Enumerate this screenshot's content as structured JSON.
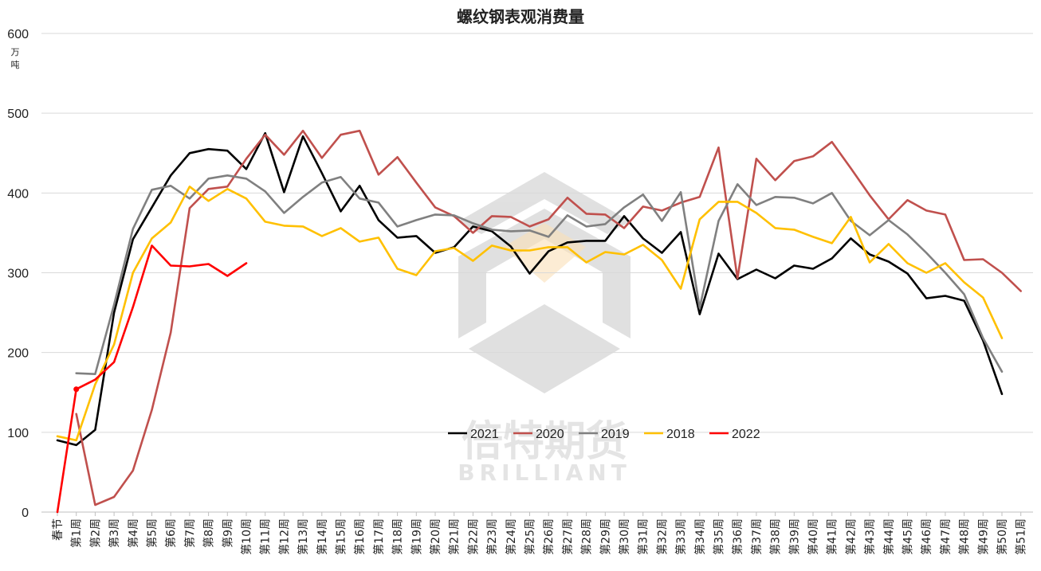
{
  "chart_data": {
    "type": "line",
    "title": "螺纹钢表观消费量",
    "ylabel": "万吨",
    "unit_chars": [
      "万",
      "吨"
    ],
    "ylim": [
      0,
      600
    ],
    "yticks": [
      0,
      100,
      200,
      300,
      400,
      500,
      600
    ],
    "grid": true,
    "legend_position": "bottom-center",
    "categories": [
      "春节",
      "第1周",
      "第2周",
      "第3周",
      "第4周",
      "第5周",
      "第6周",
      "第7周",
      "第8周",
      "第9周",
      "第10周",
      "第11周",
      "第12周",
      "第13周",
      "第14周",
      "第15周",
      "第16周",
      "第17周",
      "第18周",
      "第19周",
      "第20周",
      "第21周",
      "第22周",
      "第23周",
      "第24周",
      "第25周",
      "第26周",
      "第27周",
      "第28周",
      "第29周",
      "第30周",
      "第31周",
      "第32周",
      "第33周",
      "第34周",
      "第35周",
      "第36周",
      "第37周",
      "第38周",
      "第39周",
      "第40周",
      "第41周",
      "第42周",
      "第43周",
      "第44周",
      "第45周",
      "第46周",
      "第47周",
      "第48周",
      "第49周",
      "第50周",
      "第51周"
    ],
    "series": [
      {
        "name": "2021",
        "color": "#000000",
        "values": [
          90,
          84,
          103,
          250,
          342,
          382,
          422,
          450,
          455,
          453,
          430,
          475,
          401,
          471,
          425,
          377,
          409,
          366,
          344,
          346,
          325,
          332,
          358,
          352,
          333,
          299,
          327,
          338,
          340,
          340,
          371,
          343,
          325,
          351,
          248,
          324,
          292,
          304,
          293,
          309,
          305,
          318,
          343,
          323,
          314,
          299,
          268,
          271,
          265,
          215,
          148,
          null
        ]
      },
      {
        "name": "2020",
        "color": "#C0504D",
        "values": [
          null,
          123,
          9,
          19,
          52,
          128,
          225,
          381,
          405,
          408,
          443,
          473,
          448,
          478,
          444,
          473,
          478,
          423,
          445,
          413,
          382,
          371,
          350,
          371,
          370,
          358,
          367,
          394,
          374,
          373,
          356,
          383,
          378,
          388,
          395,
          457,
          293,
          443,
          416,
          440,
          446,
          464,
          431,
          397,
          367,
          391,
          378,
          373,
          316,
          317,
          300,
          277
        ]
      },
      {
        "name": "2019",
        "color": "#808080",
        "values": [
          null,
          174,
          173,
          260,
          355,
          404,
          409,
          393,
          418,
          422,
          418,
          402,
          375,
          395,
          413,
          420,
          393,
          388,
          358,
          366,
          373,
          372,
          362,
          354,
          352,
          353,
          345,
          372,
          358,
          361,
          382,
          398,
          365,
          401,
          256,
          365,
          411,
          385,
          395,
          394,
          387,
          400,
          365,
          347,
          366,
          348,
          325,
          300,
          273,
          218,
          176,
          null
        ]
      },
      {
        "name": "2018",
        "color": "#FFC000",
        "values": [
          95,
          90,
          160,
          210,
          300,
          343,
          363,
          408,
          390,
          405,
          393,
          364,
          359,
          358,
          346,
          356,
          339,
          344,
          305,
          297,
          327,
          331,
          315,
          334,
          328,
          328,
          332,
          332,
          313,
          326,
          323,
          335,
          316,
          280,
          367,
          389,
          389,
          375,
          356,
          354,
          345,
          337,
          370,
          313,
          336,
          312,
          300,
          312,
          288,
          269,
          218,
          null
        ]
      },
      {
        "name": "2022",
        "color": "#FF0000",
        "values": [
          0,
          154,
          166,
          188,
          257,
          334,
          309,
          308,
          311,
          296,
          312,
          null,
          null,
          null,
          null,
          null,
          null,
          null,
          null,
          null,
          null,
          null,
          null,
          null,
          null,
          null,
          null,
          null,
          null,
          null,
          null,
          null,
          null,
          null,
          null,
          null,
          null,
          null,
          null,
          null,
          null,
          null,
          null,
          null,
          null,
          null,
          null,
          null,
          null,
          null,
          null,
          null
        ]
      }
    ]
  },
  "watermark": {
    "brand_cn": "倍特期货",
    "brand_en": "BRILLIANT"
  }
}
